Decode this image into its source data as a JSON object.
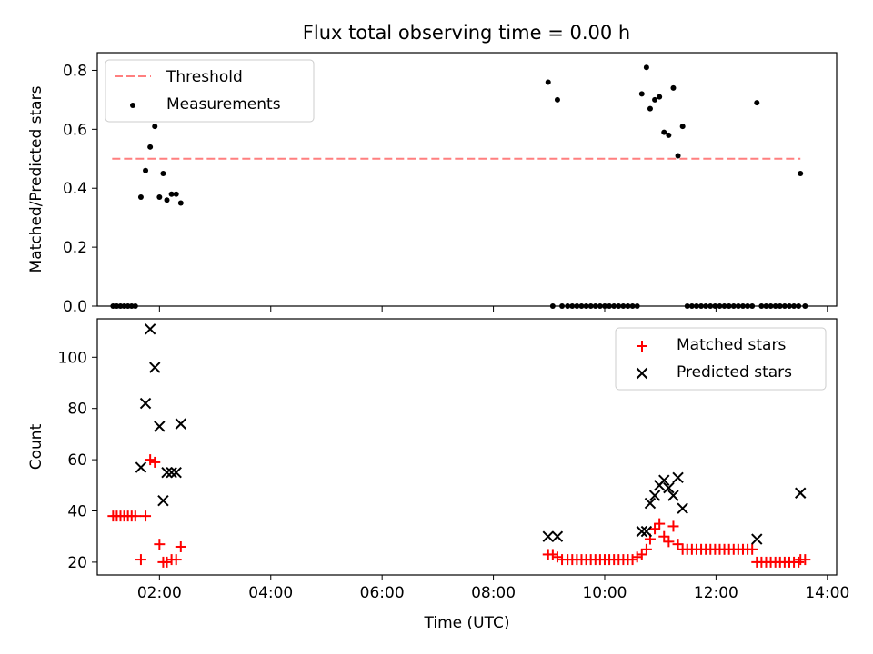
{
  "chart_data": [
    {
      "type": "scatter",
      "title": "Flux total observing time = 0.00 h",
      "xlabel": "",
      "ylabel": "Matched/Predicted stars",
      "ylim": [
        0,
        0.86
      ],
      "yticks": [
        0.0,
        0.2,
        0.4,
        0.6,
        0.8
      ],
      "ytick_labels": [
        "0.0",
        "0.2",
        "0.4",
        "0.6",
        "0.8"
      ],
      "xlim": [
        "00:53",
        "14:10"
      ],
      "grid": false,
      "legend_placement": "top-left",
      "threshold": {
        "name": "Threshold",
        "value": 0.5,
        "x_range": [
          "01:09",
          "13:31"
        ],
        "color": "#ff7f7f",
        "style": "dashed"
      },
      "series": [
        {
          "name": "Measurements",
          "color": "#000000",
          "marker": "dot",
          "points": [
            [
              "01:10",
              0.0
            ],
            [
              "01:14",
              0.0
            ],
            [
              "01:18",
              0.0
            ],
            [
              "01:22",
              0.0
            ],
            [
              "01:26",
              0.0
            ],
            [
              "01:30",
              0.0
            ],
            [
              "01:34",
              0.0
            ],
            [
              "01:40",
              0.37
            ],
            [
              "01:45",
              0.46
            ],
            [
              "01:50",
              0.54
            ],
            [
              "01:55",
              0.61
            ],
            [
              "02:00",
              0.37
            ],
            [
              "02:04",
              0.45
            ],
            [
              "02:08",
              0.36
            ],
            [
              "02:13",
              0.38
            ],
            [
              "02:18",
              0.38
            ],
            [
              "02:23",
              0.35
            ],
            [
              "08:59",
              0.76
            ],
            [
              "09:04",
              0.0
            ],
            [
              "09:09",
              0.7
            ],
            [
              "09:14",
              0.0
            ],
            [
              "09:20",
              0.0
            ],
            [
              "09:25",
              0.0
            ],
            [
              "09:30",
              0.0
            ],
            [
              "09:35",
              0.0
            ],
            [
              "09:40",
              0.0
            ],
            [
              "09:45",
              0.0
            ],
            [
              "09:50",
              0.0
            ],
            [
              "09:55",
              0.0
            ],
            [
              "10:00",
              0.0
            ],
            [
              "10:05",
              0.0
            ],
            [
              "10:10",
              0.0
            ],
            [
              "10:15",
              0.0
            ],
            [
              "10:20",
              0.0
            ],
            [
              "10:25",
              0.0
            ],
            [
              "10:30",
              0.0
            ],
            [
              "10:35",
              0.0
            ],
            [
              "10:40",
              0.72
            ],
            [
              "10:45",
              0.81
            ],
            [
              "10:49",
              0.67
            ],
            [
              "10:54",
              0.7
            ],
            [
              "10:59",
              0.71
            ],
            [
              "11:04",
              0.59
            ],
            [
              "11:09",
              0.58
            ],
            [
              "11:14",
              0.74
            ],
            [
              "11:19",
              0.51
            ],
            [
              "11:24",
              0.61
            ],
            [
              "11:29",
              0.0
            ],
            [
              "11:34",
              0.0
            ],
            [
              "11:39",
              0.0
            ],
            [
              "11:44",
              0.0
            ],
            [
              "11:49",
              0.0
            ],
            [
              "11:54",
              0.0
            ],
            [
              "11:59",
              0.0
            ],
            [
              "12:04",
              0.0
            ],
            [
              "12:09",
              0.0
            ],
            [
              "12:14",
              0.0
            ],
            [
              "12:19",
              0.0
            ],
            [
              "12:24",
              0.0
            ],
            [
              "12:29",
              0.0
            ],
            [
              "12:34",
              0.0
            ],
            [
              "12:39",
              0.0
            ],
            [
              "12:44",
              0.69
            ],
            [
              "12:49",
              0.0
            ],
            [
              "12:54",
              0.0
            ],
            [
              "12:59",
              0.0
            ],
            [
              "13:04",
              0.0
            ],
            [
              "13:09",
              0.0
            ],
            [
              "13:14",
              0.0
            ],
            [
              "13:19",
              0.0
            ],
            [
              "13:24",
              0.0
            ],
            [
              "13:29",
              0.0
            ],
            [
              "13:31",
              0.45
            ],
            [
              "13:36",
              0.0
            ]
          ]
        }
      ]
    },
    {
      "type": "scatter",
      "title": "",
      "xlabel": "Time (UTC)",
      "ylabel": "Count",
      "ylim": [
        15,
        115
      ],
      "yticks": [
        20,
        40,
        60,
        80,
        100
      ],
      "ytick_labels": [
        "20",
        "40",
        "60",
        "80",
        "100"
      ],
      "xlim": [
        "00:53",
        "14:10"
      ],
      "xticks": [
        "02:00",
        "04:00",
        "06:00",
        "08:00",
        "10:00",
        "12:00",
        "14:00"
      ],
      "xtick_labels": [
        "02:00",
        "04:00",
        "06:00",
        "08:00",
        "10:00",
        "12:00",
        "14:00"
      ],
      "grid": false,
      "legend_placement": "top-right",
      "series": [
        {
          "name": "Matched stars",
          "color": "#ff0000",
          "marker": "plus",
          "points": [
            [
              "01:10",
              38
            ],
            [
              "01:14",
              38
            ],
            [
              "01:18",
              38
            ],
            [
              "01:22",
              38
            ],
            [
              "01:26",
              38
            ],
            [
              "01:30",
              38
            ],
            [
              "01:34",
              38
            ],
            [
              "01:40",
              21
            ],
            [
              "01:45",
              38
            ],
            [
              "01:50",
              60
            ],
            [
              "01:55",
              59
            ],
            [
              "02:00",
              27
            ],
            [
              "02:04",
              20
            ],
            [
              "02:08",
              20
            ],
            [
              "02:13",
              21
            ],
            [
              "02:18",
              21
            ],
            [
              "02:23",
              26
            ],
            [
              "08:59",
              23
            ],
            [
              "09:04",
              23
            ],
            [
              "09:09",
              22
            ],
            [
              "09:14",
              21
            ],
            [
              "09:20",
              21
            ],
            [
              "09:25",
              21
            ],
            [
              "09:30",
              21
            ],
            [
              "09:35",
              21
            ],
            [
              "09:40",
              21
            ],
            [
              "09:45",
              21
            ],
            [
              "09:50",
              21
            ],
            [
              "09:55",
              21
            ],
            [
              "10:00",
              21
            ],
            [
              "10:05",
              21
            ],
            [
              "10:10",
              21
            ],
            [
              "10:15",
              21
            ],
            [
              "10:20",
              21
            ],
            [
              "10:25",
              21
            ],
            [
              "10:30",
              21
            ],
            [
              "10:35",
              22
            ],
            [
              "10:40",
              23
            ],
            [
              "10:45",
              25
            ],
            [
              "10:49",
              29
            ],
            [
              "10:54",
              33
            ],
            [
              "10:59",
              35
            ],
            [
              "11:04",
              30
            ],
            [
              "11:09",
              28
            ],
            [
              "11:14",
              34
            ],
            [
              "11:19",
              27
            ],
            [
              "11:24",
              25
            ],
            [
              "11:29",
              25
            ],
            [
              "11:34",
              25
            ],
            [
              "11:39",
              25
            ],
            [
              "11:44",
              25
            ],
            [
              "11:49",
              25
            ],
            [
              "11:54",
              25
            ],
            [
              "11:59",
              25
            ],
            [
              "12:04",
              25
            ],
            [
              "12:09",
              25
            ],
            [
              "12:14",
              25
            ],
            [
              "12:19",
              25
            ],
            [
              "12:24",
              25
            ],
            [
              "12:29",
              25
            ],
            [
              "12:34",
              25
            ],
            [
              "12:39",
              25
            ],
            [
              "12:44",
              20
            ],
            [
              "12:49",
              20
            ],
            [
              "12:54",
              20
            ],
            [
              "12:59",
              20
            ],
            [
              "13:04",
              20
            ],
            [
              "13:09",
              20
            ],
            [
              "13:14",
              20
            ],
            [
              "13:19",
              20
            ],
            [
              "13:24",
              20
            ],
            [
              "13:29",
              20
            ],
            [
              "13:31",
              21
            ],
            [
              "13:36",
              21
            ]
          ]
        },
        {
          "name": "Predicted stars",
          "color": "#000000",
          "marker": "x",
          "points": [
            [
              "01:40",
              57
            ],
            [
              "01:45",
              82
            ],
            [
              "01:50",
              111
            ],
            [
              "01:55",
              96
            ],
            [
              "02:00",
              73
            ],
            [
              "02:04",
              44
            ],
            [
              "02:08",
              55
            ],
            [
              "02:13",
              55
            ],
            [
              "02:18",
              55
            ],
            [
              "02:23",
              74
            ],
            [
              "08:59",
              30
            ],
            [
              "09:09",
              30
            ],
            [
              "10:40",
              32
            ],
            [
              "10:45",
              32
            ],
            [
              "10:49",
              43
            ],
            [
              "10:54",
              46
            ],
            [
              "10:59",
              50
            ],
            [
              "11:04",
              52
            ],
            [
              "11:09",
              49
            ],
            [
              "11:14",
              46
            ],
            [
              "11:19",
              53
            ],
            [
              "11:24",
              41
            ],
            [
              "12:44",
              29
            ],
            [
              "13:31",
              47
            ]
          ]
        }
      ]
    }
  ]
}
